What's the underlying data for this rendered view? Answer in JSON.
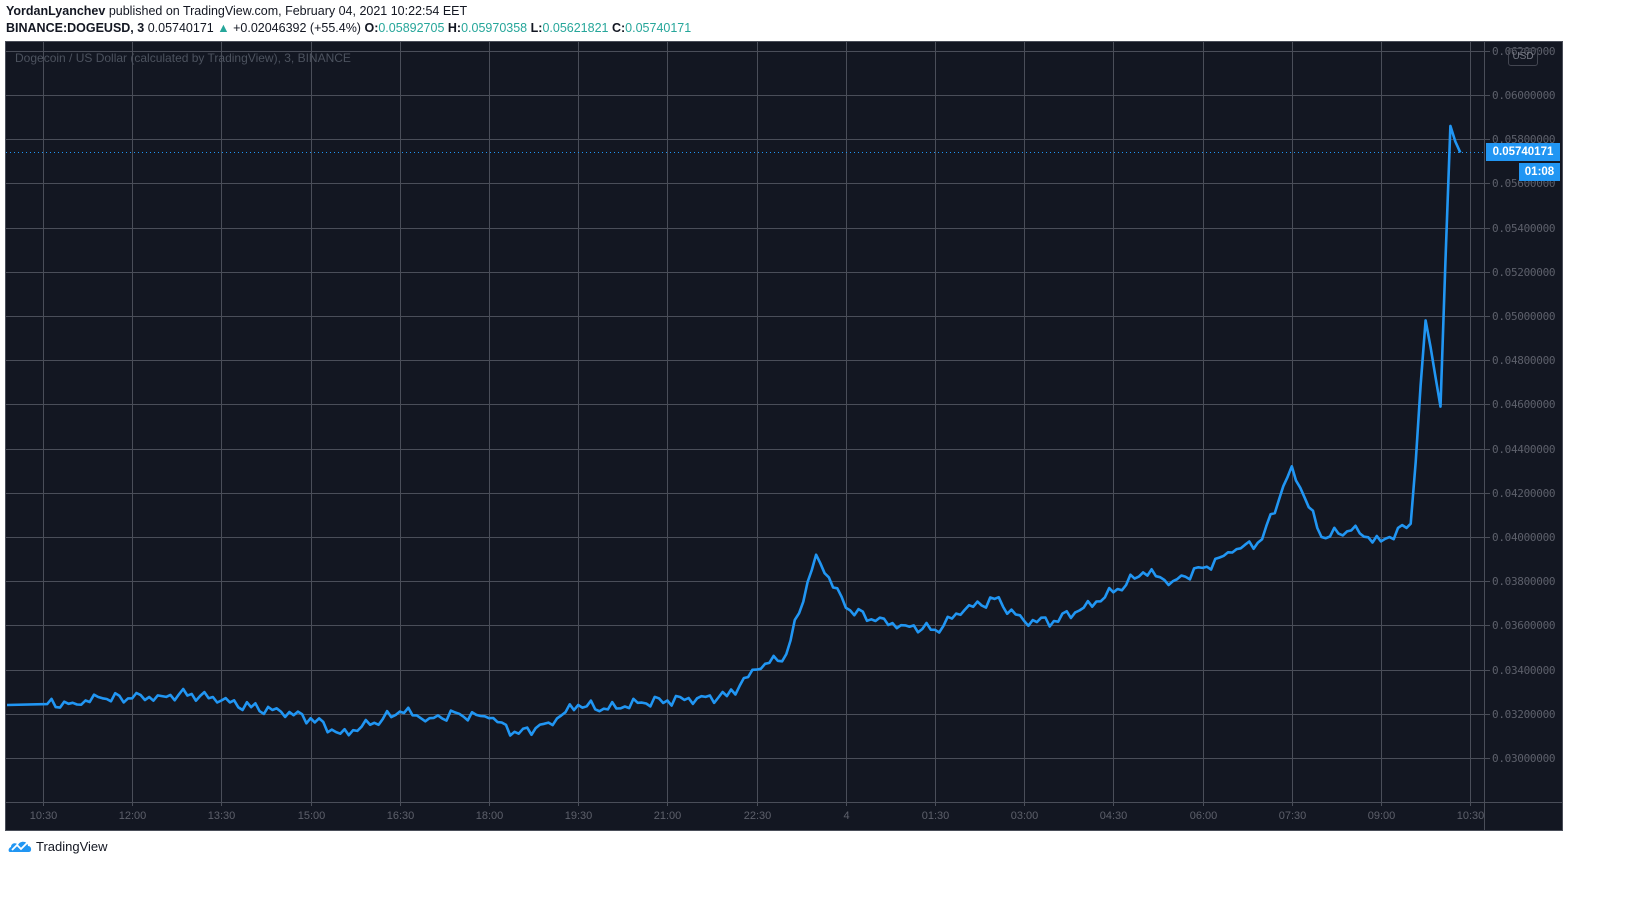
{
  "header": {
    "author": "YordanLyanchev",
    "published_text": "published on TradingView.com, February 04, 2021 10:22:54 EET",
    "symbol": "BINANCE:DOGEUSD, 3",
    "last_price": "0.05740171",
    "change_arrow": "▲",
    "change": "+0.02046392 (+55.4%)",
    "ohlc": {
      "o_label": "O:",
      "o": "0.05892705",
      "h_label": "H:",
      "h": "0.05970358",
      "l_label": "L:",
      "l": "0.05621821",
      "c_label": "C:",
      "c": "0.05740171"
    }
  },
  "chart": {
    "legend": "Dogecoin / US Dollar (calculated by TradingView), 3, BINANCE",
    "currency_badge": "USD",
    "price_label": "0.05740171",
    "countdown_label": "01:08",
    "colors": {
      "background": "#131722",
      "grid": "#4a4e59",
      "line": "#2196f3",
      "axis_text": "#5d606b",
      "up": "#26a69a"
    }
  },
  "footer": {
    "brand": "TradingView"
  },
  "chart_data": {
    "type": "line",
    "title": "Dogecoin / US Dollar (calculated by TradingView), 3, BINANCE",
    "xlabel": "",
    "ylabel": "USD",
    "ylim": [
      0.029,
      0.062
    ],
    "grid": true,
    "legend_position": "top-left",
    "y_ticks": [
      "0.06200000",
      "0.06000000",
      "0.05800000",
      "0.05600000",
      "0.05400000",
      "0.05200000",
      "0.05000000",
      "0.04800000",
      "0.04600000",
      "0.04400000",
      "0.04200000",
      "0.04000000",
      "0.03800000",
      "0.03600000",
      "0.03400000",
      "0.03200000",
      "0.03000000"
    ],
    "x_ticks": [
      "10:30",
      "12:00",
      "13:30",
      "15:00",
      "16:30",
      "18:00",
      "19:30",
      "21:00",
      "22:30",
      "4",
      "01:30",
      "03:00",
      "04:30",
      "06:00",
      "07:30",
      "09:00",
      "10:30"
    ],
    "series": [
      {
        "name": "DOGEUSD",
        "x": [
          "10:30",
          "11:00",
          "11:30",
          "12:00",
          "12:30",
          "13:00",
          "13:30",
          "14:00",
          "14:30",
          "15:00",
          "15:30",
          "16:00",
          "16:30",
          "17:00",
          "17:30",
          "18:00",
          "18:30",
          "19:00",
          "19:30",
          "20:00",
          "20:30",
          "21:00",
          "21:30",
          "22:00",
          "22:30",
          "23:00",
          "23:30",
          "00:00",
          "00:30",
          "01:00",
          "01:30",
          "02:00",
          "02:30",
          "03:00",
          "03:30",
          "04:00",
          "04:30",
          "05:00",
          "05:30",
          "06:00",
          "06:30",
          "07:00",
          "07:30",
          "08:00",
          "08:30",
          "09:00",
          "09:30",
          "09:45",
          "10:00",
          "10:10",
          "10:20"
        ],
        "values": [
          0.0324,
          0.0325,
          0.0327,
          0.0327,
          0.0328,
          0.0329,
          0.0326,
          0.0323,
          0.0321,
          0.0318,
          0.0311,
          0.0315,
          0.0321,
          0.0318,
          0.032,
          0.0318,
          0.0311,
          0.0316,
          0.0324,
          0.0322,
          0.0325,
          0.0326,
          0.0327,
          0.0328,
          0.034,
          0.0347,
          0.0392,
          0.0368,
          0.0362,
          0.036,
          0.0358,
          0.0367,
          0.0372,
          0.0362,
          0.0362,
          0.0368,
          0.0375,
          0.0384,
          0.038,
          0.0386,
          0.0393,
          0.0399,
          0.0432,
          0.04,
          0.0403,
          0.0398,
          0.0406,
          0.0498,
          0.0459,
          0.0586,
          0.0574
        ]
      }
    ]
  }
}
